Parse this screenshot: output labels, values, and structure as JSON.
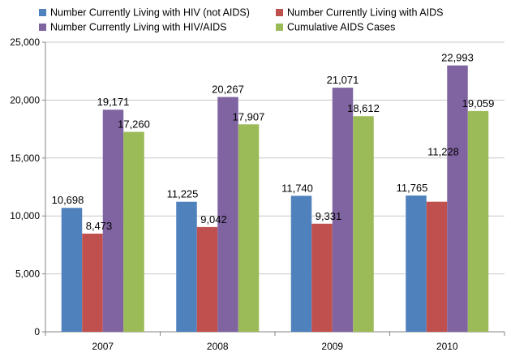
{
  "chart_data": {
    "type": "bar",
    "categories": [
      "2007",
      "2008",
      "2009",
      "2010"
    ],
    "series": [
      {
        "name": "Number Currently Living with HIV (not AIDS)",
        "color": "#4f81bd",
        "values": [
          10698,
          11225,
          11740,
          11765
        ],
        "labels": [
          "10,698",
          "11,225",
          "11,740",
          "11,765"
        ]
      },
      {
        "name": "Number Currently Living with AIDS",
        "color": "#c0504d",
        "values": [
          8473,
          9042,
          9331,
          11228
        ],
        "labels": [
          "8,473",
          "9,042",
          "9,331",
          "11,228"
        ]
      },
      {
        "name": "Number Currently Living with HIV/AIDS",
        "color": "#8064a2",
        "values": [
          19171,
          20267,
          21071,
          22993
        ],
        "labels": [
          "19,171",
          "20,267",
          "21,071",
          "22,993"
        ]
      },
      {
        "name": "Cumulative AIDS Cases",
        "color": "#9bbb59",
        "values": [
          17260,
          17907,
          18612,
          19059
        ],
        "labels": [
          "17,260",
          "17,907",
          "18,612",
          "19,059"
        ]
      }
    ],
    "y_ticks": [
      0,
      5000,
      10000,
      15000,
      20000,
      25000
    ],
    "y_tick_labels": [
      "0",
      "5,000",
      "10,000",
      "15,000",
      "20,000",
      "25,000"
    ],
    "ylim": [
      0,
      25000
    ],
    "grid": true,
    "legend_position": "top"
  }
}
